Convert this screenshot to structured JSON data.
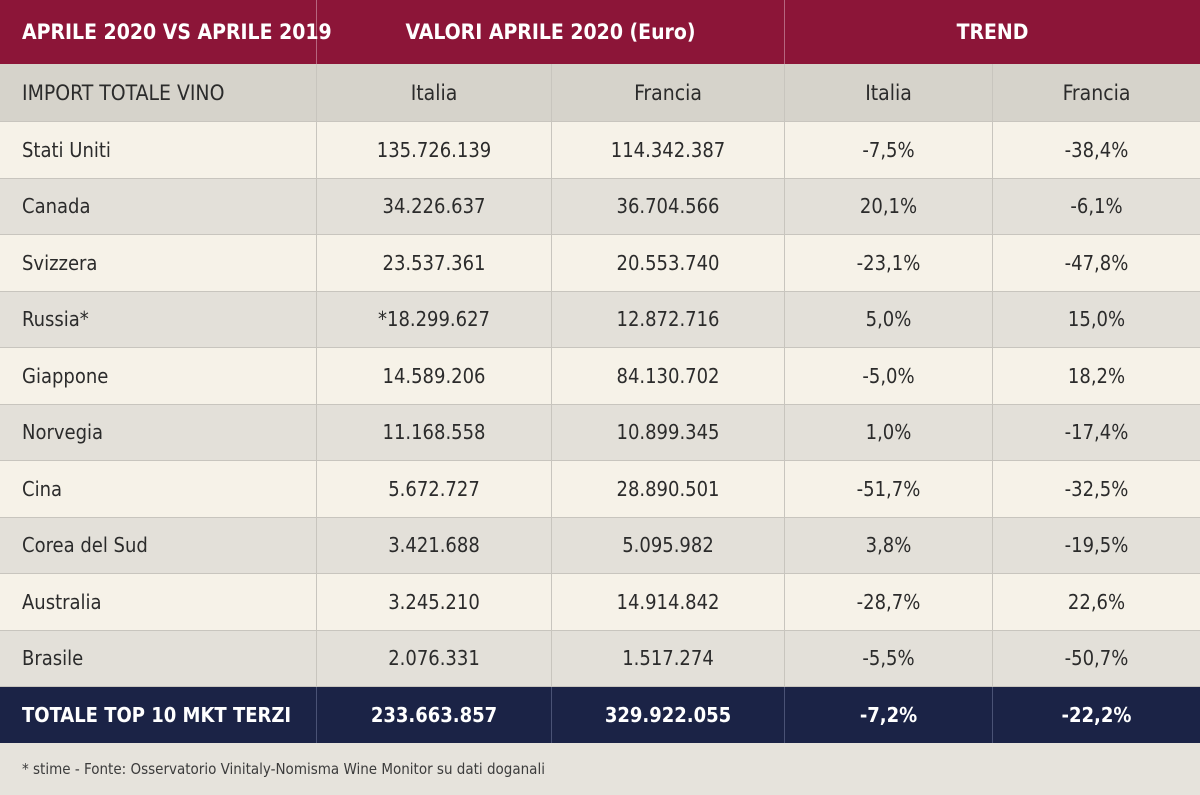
{
  "header": {
    "col1": "APRILE 2020 VS APRILE 2019",
    "col_values": "VALORI APRILE 2020 (Euro)",
    "col_trend": "TREND"
  },
  "subheader": {
    "label": "IMPORT TOTALE VINO",
    "italia_values": "Italia",
    "francia_values": "Francia",
    "italia_trend": "Italia",
    "francia_trend": "Francia"
  },
  "rows": [
    {
      "country": "Stati Uniti",
      "italia": "135.726.139",
      "francia": "114.342.387",
      "trend_italia": "-7,5%",
      "trend_francia": "-38,4%"
    },
    {
      "country": "Canada",
      "italia": "34.226.637",
      "francia": "36.704.566",
      "trend_italia": "20,1%",
      "trend_francia": "-6,1%"
    },
    {
      "country": "Svizzera",
      "italia": "23.537.361",
      "francia": "20.553.740",
      "trend_italia": "-23,1%",
      "trend_francia": "-47,8%"
    },
    {
      "country": "Russia*",
      "italia": "*18.299.627",
      "francia": "12.872.716",
      "trend_italia": "5,0%",
      "trend_francia": "15,0%"
    },
    {
      "country": "Giappone",
      "italia": "14.589.206",
      "francia": "84.130.702",
      "trend_italia": "-5,0%",
      "trend_francia": "18,2%"
    },
    {
      "country": "Norvegia",
      "italia": "11.168.558",
      "francia": "10.899.345",
      "trend_italia": "1,0%",
      "trend_francia": "-17,4%"
    },
    {
      "country": "Cina",
      "italia": "5.672.727",
      "francia": "28.890.501",
      "trend_italia": "-51,7%",
      "trend_francia": "-32,5%"
    },
    {
      "country": "Corea del Sud",
      "italia": "3.421.688",
      "francia": "5.095.982",
      "trend_italia": "3,8%",
      "trend_francia": "-19,5%"
    },
    {
      "country": "Australia",
      "italia": "3.245.210",
      "francia": "14.914.842",
      "trend_italia": "-28,7%",
      "trend_francia": "22,6%"
    },
    {
      "country": "Brasile",
      "italia": "2.076.331",
      "francia": "1.517.274",
      "trend_italia": "-5,5%",
      "trend_francia": "-50,7%"
    }
  ],
  "total": {
    "label": "TOTALE TOP 10 MKT TERZI",
    "italia": "233.663.857",
    "francia": "329.922.055",
    "trend_italia": "-7,2%",
    "trend_francia": "-22,2%"
  },
  "footnote": "* stime - Fonte: Osservatorio Vinitaly-Nomisma Wine Monitor su dati doganali"
}
